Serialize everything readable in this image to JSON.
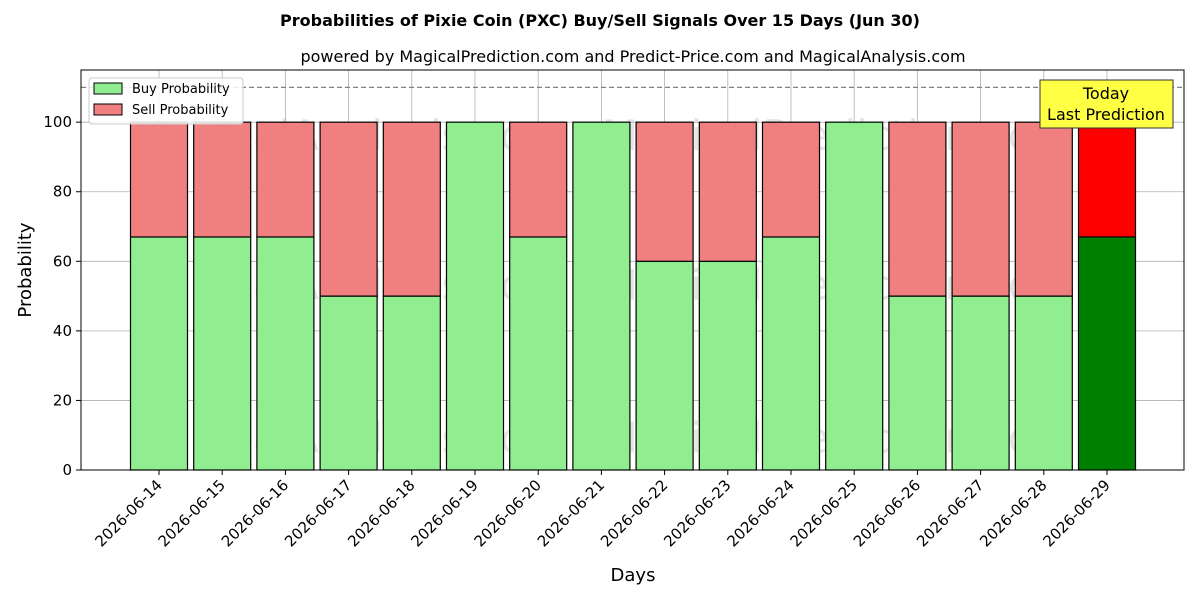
{
  "chart_data": {
    "type": "bar",
    "stacked": true,
    "title": "Probabilities of Pixie Coin (PXC) Buy/Sell Signals Over 15 Days (Jun 30)",
    "subtitle": "powered by MagicalPrediction.com and Predict-Price.com and MagicalAnalysis.com",
    "xlabel": "Days",
    "ylabel": "Probability",
    "ylim": [
      0,
      115
    ],
    "yticks": [
      0,
      20,
      40,
      60,
      80,
      100
    ],
    "grid": true,
    "reference_line": 110,
    "legend_position": "top-left",
    "categories": [
      "2026-06-14",
      "2026-06-15",
      "2026-06-16",
      "2026-06-17",
      "2026-06-18",
      "2026-06-19",
      "2026-06-20",
      "2026-06-21",
      "2026-06-22",
      "2026-06-23",
      "2026-06-24",
      "2026-06-25",
      "2026-06-26",
      "2026-06-27",
      "2026-06-28",
      "2026-06-29"
    ],
    "series": [
      {
        "name": "Buy Probability",
        "color": "#90ee90",
        "highlight_color": "#008000",
        "values": [
          67,
          67,
          67,
          50,
          50,
          100,
          67,
          100,
          60,
          60,
          67,
          100,
          50,
          50,
          50,
          67
        ]
      },
      {
        "name": "Sell Probability",
        "color": "#f08080",
        "highlight_color": "#ff0000",
        "values": [
          33,
          33,
          33,
          50,
          50,
          0,
          33,
          0,
          40,
          40,
          33,
          0,
          50,
          50,
          50,
          33
        ]
      }
    ],
    "annotation": {
      "lines": [
        "Today",
        "Last Prediction"
      ],
      "color": "#ffff44"
    },
    "watermark": [
      "MagicalAnalysis.com",
      "MagicalPrediction.com"
    ]
  }
}
